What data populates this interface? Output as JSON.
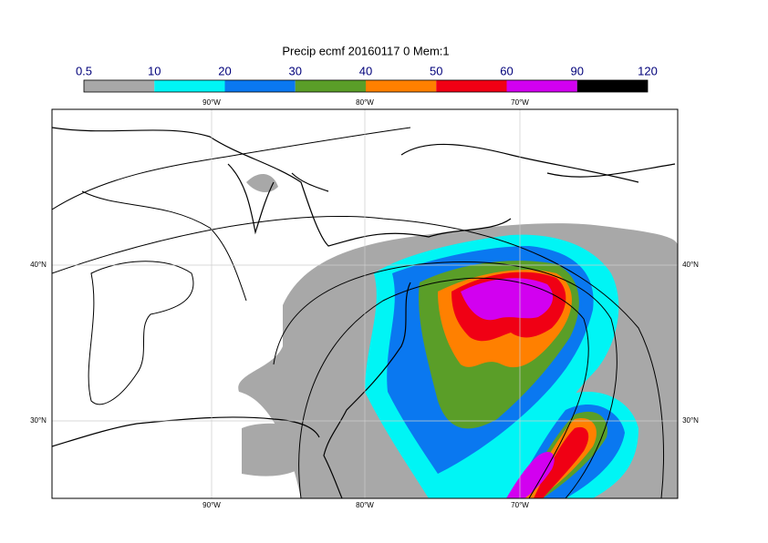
{
  "title": "Precip ecmf 20160117 0 Mem:1",
  "colorbar": {
    "levels": [
      0.5,
      10,
      20,
      30,
      40,
      50,
      60,
      90,
      120
    ],
    "colors": [
      "#a8a8a8",
      "#00f5f5",
      "#0a78f0",
      "#5a9e28",
      "#ff8000",
      "#f00014",
      "#d200f0",
      "#000000"
    ]
  },
  "map": {
    "lon_labels_top": [
      "90°W",
      "80°W",
      "70°W"
    ],
    "lon_labels_bottom": [
      "90°W",
      "80°W",
      "70°W"
    ],
    "lat_labels_left": [
      "40°N",
      "30°N"
    ],
    "lat_labels_right": [
      "40°N",
      "30°N"
    ]
  }
}
